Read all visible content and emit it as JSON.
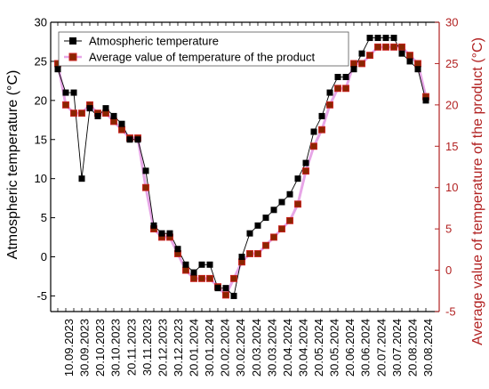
{
  "chart_data": {
    "type": "line",
    "xlabel": "",
    "ylabel_left": "Atmospheric temperature (°C)",
    "ylabel_right": "Average value of temperature of the product (°C)",
    "ylim_left": [
      -7,
      30
    ],
    "ylim_right": [
      -5,
      30
    ],
    "yticks": [
      -5,
      0,
      5,
      10,
      15,
      20,
      25,
      30
    ],
    "x_tick_labels": [
      "10.09.2023",
      "30.09.2023",
      "20.10.2023",
      "30.10.2023",
      "20.11.2023",
      "30.11.2023",
      "20.12.2023",
      "30.12.2023",
      "20.01.2024",
      "30.01.2024",
      "20.02.2024",
      "30.02.2024",
      "20.03.2024",
      "30.03.2024",
      "20.04.2024",
      "30.04.2024",
      "20.05.2024",
      "30.05.2024",
      "20.06.2024",
      "30.06.2024",
      "20.07.2024",
      "30.07.2024",
      "20.08.2024",
      "30.08.2024"
    ],
    "legend_position": "top-left",
    "grid": false,
    "colors": {
      "left_axis": "#000000",
      "right_axis": "#b22222",
      "series1_marker": "#000000",
      "series2_marker": "#8b2500",
      "series2_line": "#e7a6e7"
    },
    "series": [
      {
        "name": "Atmospheric temperature",
        "axis": "left",
        "values": [
          24,
          21,
          21,
          10,
          19,
          18,
          19,
          18,
          17,
          15,
          15,
          11,
          4,
          3,
          3,
          1,
          -1,
          -2,
          -1,
          -1,
          -4,
          -4,
          -5,
          0,
          3,
          4,
          5,
          6,
          7,
          8,
          10,
          12,
          16,
          18,
          21,
          23,
          23,
          24,
          26,
          28,
          28,
          28,
          28,
          26,
          25,
          24,
          20
        ]
      },
      {
        "name": "Average value of temperature of the product",
        "axis": "right",
        "values": [
          25,
          20,
          19,
          19,
          20,
          19,
          19,
          18,
          17,
          16,
          16,
          10,
          5,
          4,
          4,
          2,
          0,
          -1,
          -1,
          -1,
          -2,
          -3,
          -1,
          1,
          2,
          2,
          3,
          4,
          5,
          6,
          8,
          12,
          15,
          17,
          20,
          22,
          22,
          25,
          25,
          26,
          27,
          27,
          27,
          27,
          26,
          25,
          21
        ]
      }
    ]
  }
}
